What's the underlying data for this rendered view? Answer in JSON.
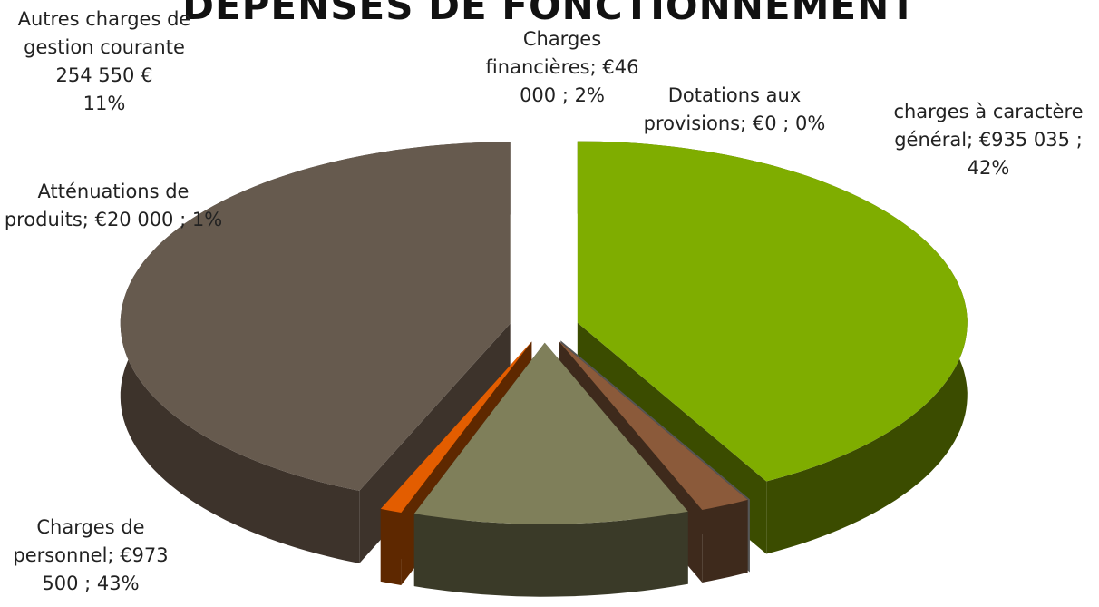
{
  "chart_data": {
    "type": "pie3d",
    "title": "DÉPENSES DE FONCTIONNEMENT",
    "categories": [
      "charges à caractère général;",
      "Dotations aux provisions;",
      "Charges financières;",
      "Autres charges de gestion courante",
      "Atténuations de produits;",
      "Charges de personnel;"
    ],
    "values": [
      935035,
      0,
      46000,
      254550,
      20000,
      973500
    ],
    "value_labels": [
      "€935 035 ;",
      "€0 ;",
      "€46 000 ;",
      "254 550 €",
      "€20 000 ;",
      "€973 500 ;"
    ],
    "percents": [
      42,
      0,
      2,
      11,
      1,
      43
    ],
    "percent_labels": [
      "42%",
      "0%",
      "2%",
      "11%",
      "1%",
      "43%"
    ],
    "colors": [
      "#7fad00",
      "#9a9a9a",
      "#8b5a3a",
      "#7f7f5a",
      "#e35d00",
      "#665a4e"
    ],
    "side_colors": [
      "#3b4c00",
      "#555555",
      "#3e2a1c",
      "#3a3a28",
      "#5e2800",
      "#3d332b"
    ]
  }
}
